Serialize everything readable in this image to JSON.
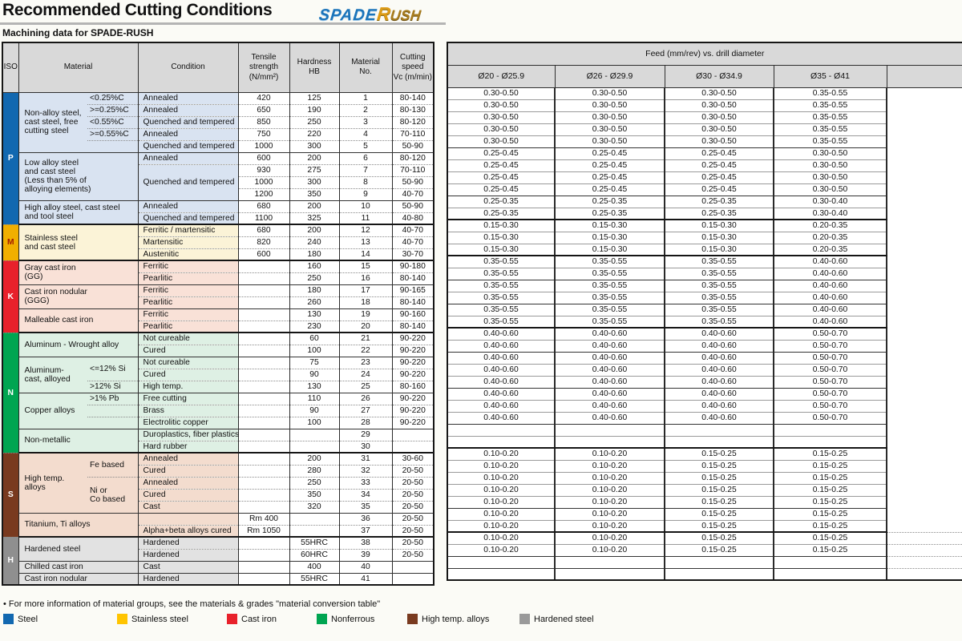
{
  "header": {
    "title": "Recommended Cutting Conditions",
    "logo_spade": "SPADE",
    "logo_rush_initial": "R",
    "logo_rush_rest": "USH",
    "subtitle": "Machining data for SPADE-RUSH"
  },
  "left_table": {
    "iso": "ISO",
    "material": "Material",
    "condition": "Condition",
    "tensile": "Tensile\nstrength\n(N/mm²)",
    "hardness": "Hardness\nHB",
    "material_no": "Material\nNo.",
    "cutting_speed": "Cutting\nspeed\nVc (m/min)"
  },
  "feed_table": {
    "title": "Feed (mm/rev) vs. drill diameter",
    "columns": [
      "Ø20 - Ø25.9",
      "Ø26 - Ø29.9",
      "Ø30 - Ø34.9",
      "Ø35 - Ø41"
    ]
  },
  "sections": [
    {
      "iso": "P",
      "color": "#1268b0",
      "tint": "#d9e3f1",
      "letter": "#ffffff",
      "groups": [
        {
          "material": "Non-alloy steel,\ncast steel, free\ncutting steel",
          "split": true,
          "rows": [
            {
              "sub": "<0.25%C",
              "cond": "Annealed",
              "ts": "420",
              "hb": "125",
              "no": "1",
              "vc": "80-140",
              "feeds": [
                "0.30-0.50",
                "0.30-0.50",
                "0.30-0.50",
                "0.35-0.55"
              ]
            },
            {
              "sub": ">=0.25%C",
              "cond": "Annealed",
              "ts": "650",
              "hb": "190",
              "no": "2",
              "vc": "80-130",
              "feeds": [
                "0.30-0.50",
                "0.30-0.50",
                "0.30-0.50",
                "0.35-0.55"
              ]
            },
            {
              "sub": "<0.55%C",
              "cond": "Quenched and tempered",
              "ts": "850",
              "hb": "250",
              "no": "3",
              "vc": "80-120",
              "feeds": [
                "0.30-0.50",
                "0.30-0.50",
                "0.30-0.50",
                "0.35-0.55"
              ]
            },
            {
              "sub": ">=0.55%C",
              "cond": "Annealed",
              "ts": "750",
              "hb": "220",
              "no": "4",
              "vc": "70-110",
              "feeds": [
                "0.30-0.50",
                "0.30-0.50",
                "0.30-0.50",
                "0.35-0.55"
              ]
            },
            {
              "sub": "",
              "cond": "Quenched and tempered",
              "ts": "1000",
              "hb": "300",
              "no": "5",
              "vc": "50-90",
              "feeds": [
                "0.30-0.50",
                "0.30-0.50",
                "0.30-0.50",
                "0.35-0.55"
              ]
            }
          ]
        },
        {
          "material": "Low alloy steel\nand cast steel\n(Less than 5% of\nalloying elements)",
          "split": false,
          "rows": [
            {
              "cond": "Annealed",
              "ts": "600",
              "hb": "200",
              "no": "6",
              "vc": "80-120",
              "feeds": [
                "0.25-0.45",
                "0.25-0.45",
                "0.25-0.45",
                "0.30-0.50"
              ]
            },
            {
              "cond": "Quenched and tempered",
              "cspan": 3,
              "ts": "930",
              "hb": "275",
              "no": "7",
              "vc": "70-110",
              "feeds": [
                "0.25-0.45",
                "0.25-0.45",
                "0.25-0.45",
                "0.30-0.50"
              ]
            },
            {
              "ts": "1000",
              "hb": "300",
              "no": "8",
              "vc": "50-90",
              "feeds": [
                "0.25-0.45",
                "0.25-0.45",
                "0.25-0.45",
                "0.30-0.50"
              ]
            },
            {
              "ts": "1200",
              "hb": "350",
              "no": "9",
              "vc": "40-70",
              "feeds": [
                "0.25-0.45",
                "0.25-0.45",
                "0.25-0.45",
                "0.30-0.50"
              ]
            }
          ]
        },
        {
          "material": "High alloy steel, cast steel\nand tool steel",
          "split": false,
          "rows": [
            {
              "cond": "Annealed",
              "ts": "680",
              "hb": "200",
              "no": "10",
              "vc": "50-90",
              "feeds": [
                "0.25-0.35",
                "0.25-0.35",
                "0.25-0.35",
                "0.30-0.40"
              ]
            },
            {
              "cond": "Quenched and tempered",
              "ts": "1100",
              "hb": "325",
              "no": "11",
              "vc": "40-80",
              "feeds": [
                "0.25-0.35",
                "0.25-0.35",
                "0.25-0.35",
                "0.30-0.40"
              ]
            }
          ]
        }
      ]
    },
    {
      "iso": "M",
      "color": "#f1af00",
      "tint": "#fbf3d7",
      "letter": "#a31d00",
      "groups": [
        {
          "material": "Stainless steel\nand cast steel",
          "split": false,
          "rows": [
            {
              "cond": "Ferritic / martensitic",
              "ts": "680",
              "hb": "200",
              "no": "12",
              "vc": "40-70",
              "feeds": [
                "0.15-0.30",
                "0.15-0.30",
                "0.15-0.30",
                "0.20-0.35"
              ]
            },
            {
              "cond": "Martensitic",
              "ts": "820",
              "hb": "240",
              "no": "13",
              "vc": "40-70",
              "feeds": [
                "0.15-0.30",
                "0.15-0.30",
                "0.15-0.30",
                "0.20-0.35"
              ]
            },
            {
              "cond": "Austenitic",
              "ts": "600",
              "hb": "180",
              "no": "14",
              "vc": "30-70",
              "feeds": [
                "0.15-0.30",
                "0.15-0.30",
                "0.15-0.30",
                "0.20-0.35"
              ]
            }
          ]
        }
      ]
    },
    {
      "iso": "K",
      "color": "#e8212b",
      "tint": "#f9e1d7",
      "letter": "#ffffff",
      "groups": [
        {
          "material": "Gray cast iron\n(GG)",
          "split": false,
          "rows": [
            {
              "cond": "Ferritic",
              "ts": "",
              "hb": "160",
              "no": "15",
              "vc": "90-180",
              "feeds": [
                "0.35-0.55",
                "0.35-0.55",
                "0.35-0.55",
                "0.40-0.60"
              ]
            },
            {
              "cond": "Pearlitic",
              "ts": "",
              "hb": "250",
              "no": "16",
              "vc": "80-140",
              "feeds": [
                "0.35-0.55",
                "0.35-0.55",
                "0.35-0.55",
                "0.40-0.60"
              ]
            }
          ]
        },
        {
          "material": "Cast iron nodular\n(GGG)",
          "split": false,
          "rows": [
            {
              "cond": "Ferritic",
              "ts": "",
              "hb": "180",
              "no": "17",
              "vc": "90-165",
              "feeds": [
                "0.35-0.55",
                "0.35-0.55",
                "0.35-0.55",
                "0.40-0.60"
              ]
            },
            {
              "cond": "Pearlitic",
              "ts": "",
              "hb": "260",
              "no": "18",
              "vc": "80-140",
              "feeds": [
                "0.35-0.55",
                "0.35-0.55",
                "0.35-0.55",
                "0.40-0.60"
              ]
            }
          ]
        },
        {
          "material": "Malleable cast iron",
          "split": false,
          "rows": [
            {
              "cond": "Ferritic",
              "ts": "",
              "hb": "130",
              "no": "19",
              "vc": "90-160",
              "feeds": [
                "0.35-0.55",
                "0.35-0.55",
                "0.35-0.55",
                "0.40-0.60"
              ]
            },
            {
              "cond": "Pearlitic",
              "ts": "",
              "hb": "230",
              "no": "20",
              "vc": "80-140",
              "feeds": [
                "0.35-0.55",
                "0.35-0.55",
                "0.35-0.55",
                "0.40-0.60"
              ]
            }
          ]
        }
      ]
    },
    {
      "iso": "N",
      "color": "#00a551",
      "tint": "#def0e4",
      "letter": "#ffffff",
      "groups": [
        {
          "material": "Aluminum - Wrought alloy",
          "split": false,
          "rows": [
            {
              "cond": "Not cureable",
              "ts": "",
              "hb": "60",
              "no": "21",
              "vc": "90-220",
              "feeds": [
                "0.40-0.60",
                "0.40-0.60",
                "0.40-0.60",
                "0.50-0.70"
              ]
            },
            {
              "cond": "Cured",
              "ts": "",
              "hb": "100",
              "no": "22",
              "vc": "90-220",
              "feeds": [
                "0.40-0.60",
                "0.40-0.60",
                "0.40-0.60",
                "0.50-0.70"
              ]
            }
          ]
        },
        {
          "material": "Aluminum-\ncast, alloyed",
          "split": true,
          "rows": [
            {
              "sub": "<=12% Si",
              "sspan": 2,
              "cond": "Not cureable",
              "ts": "",
              "hb": "75",
              "no": "23",
              "vc": "90-220",
              "feeds": [
                "0.40-0.60",
                "0.40-0.60",
                "0.40-0.60",
                "0.50-0.70"
              ]
            },
            {
              "cond": "Cured",
              "ts": "",
              "hb": "90",
              "no": "24",
              "vc": "90-220",
              "feeds": [
                "0.40-0.60",
                "0.40-0.60",
                "0.40-0.60",
                "0.50-0.70"
              ]
            },
            {
              "sub": ">12% Si",
              "cond": "High temp.",
              "ts": "",
              "hb": "130",
              "no": "25",
              "vc": "80-160",
              "feeds": [
                "0.40-0.60",
                "0.40-0.60",
                "0.40-0.60",
                "0.50-0.70"
              ]
            }
          ]
        },
        {
          "material": "Copper alloys",
          "split": true,
          "rows": [
            {
              "sub": ">1% Pb",
              "cond": "Free cutting",
              "ts": "",
              "hb": "110",
              "no": "26",
              "vc": "90-220",
              "feeds": [
                "0.40-0.60",
                "0.40-0.60",
                "0.40-0.60",
                "0.50-0.70"
              ]
            },
            {
              "sub": "",
              "cond": "Brass",
              "ts": "",
              "hb": "90",
              "no": "27",
              "vc": "90-220",
              "feeds": [
                "0.40-0.60",
                "0.40-0.60",
                "0.40-0.60",
                "0.50-0.70"
              ]
            },
            {
              "sub": "",
              "cond": "Electrolitic copper",
              "ts": "",
              "hb": "100",
              "no": "28",
              "vc": "90-220",
              "feeds": [
                "0.40-0.60",
                "0.40-0.60",
                "0.40-0.60",
                "0.50-0.70"
              ]
            }
          ]
        },
        {
          "material": "Non-metallic",
          "split": false,
          "rows": [
            {
              "cond": "Duroplastics, fiber plastics",
              "ts": "",
              "hb": "",
              "no": "29",
              "vc": "",
              "feeds": [
                "",
                "",
                "",
                ""
              ]
            },
            {
              "cond": "Hard rubber",
              "ts": "",
              "hb": "",
              "no": "30",
              "vc": "",
              "feeds": [
                "",
                "",
                "",
                ""
              ]
            }
          ]
        }
      ]
    },
    {
      "iso": "S",
      "color": "#793a1f",
      "tint": "#f3dcce",
      "letter": "#ffffff",
      "groups": [
        {
          "material": "High temp.\nalloys",
          "split": true,
          "rows": [
            {
              "sub": "Fe based",
              "sspan": 2,
              "cond": "Annealed",
              "ts": "",
              "hb": "200",
              "no": "31",
              "vc": "30-60",
              "feeds": [
                "0.10-0.20",
                "0.10-0.20",
                "0.15-0.25",
                "0.15-0.25"
              ]
            },
            {
              "cond": "Cured",
              "ts": "",
              "hb": "280",
              "no": "32",
              "vc": "20-50",
              "feeds": [
                "0.10-0.20",
                "0.10-0.20",
                "0.15-0.25",
                "0.15-0.25"
              ]
            },
            {
              "sub": "Ni or\nCo based",
              "sspan": 3,
              "cond": "Annealed",
              "ts": "",
              "hb": "250",
              "no": "33",
              "vc": "20-50",
              "feeds": [
                "0.10-0.20",
                "0.10-0.20",
                "0.15-0.25",
                "0.15-0.25"
              ]
            },
            {
              "cond": "Cured",
              "ts": "",
              "hb": "350",
              "no": "34",
              "vc": "20-50",
              "feeds": [
                "0.10-0.20",
                "0.10-0.20",
                "0.15-0.25",
                "0.15-0.25"
              ]
            },
            {
              "cond": "Cast",
              "ts": "",
              "hb": "320",
              "no": "35",
              "vc": "20-50",
              "feeds": [
                "0.10-0.20",
                "0.10-0.20",
                "0.15-0.25",
                "0.15-0.25"
              ]
            }
          ]
        },
        {
          "material": "Titanium, Ti alloys",
          "split": false,
          "rows": [
            {
              "cond": "",
              "ts": "Rm 400",
              "hb": "",
              "no": "36",
              "vc": "20-50",
              "feeds": [
                "0.10-0.20",
                "0.10-0.20",
                "0.15-0.25",
                "0.15-0.25"
              ]
            },
            {
              "cond": "Alpha+beta alloys cured",
              "ts": "Rm 1050",
              "hb": "",
              "no": "37",
              "vc": "20-50",
              "feeds": [
                "0.10-0.20",
                "0.10-0.20",
                "0.15-0.25",
                "0.15-0.25"
              ]
            }
          ]
        }
      ]
    },
    {
      "iso": "H",
      "color": "#8f8f8f",
      "tint": "#e2e2e2",
      "letter": "#ffffff",
      "checker": true,
      "groups": [
        {
          "material": "Hardened steel",
          "split": false,
          "rows": [
            {
              "cond": "Hardened",
              "ts": "",
              "hb": "55HRC",
              "no": "38",
              "vc": "20-50",
              "feeds": [
                "0.10-0.20",
                "0.10-0.20",
                "0.15-0.25",
                "0.15-0.25"
              ]
            },
            {
              "cond": "Hardened",
              "ts": "",
              "hb": "60HRC",
              "no": "39",
              "vc": "20-50",
              "feeds": [
                "0.10-0.20",
                "0.10-0.20",
                "0.15-0.25",
                "0.15-0.25"
              ]
            }
          ]
        },
        {
          "material": "Chilled cast iron",
          "split": false,
          "rows": [
            {
              "cond": "Cast",
              "ts": "",
              "hb": "400",
              "no": "40",
              "vc": "",
              "feeds": [
                "",
                "",
                "",
                ""
              ]
            }
          ]
        },
        {
          "material": "Cast iron nodular",
          "split": false,
          "rows": [
            {
              "cond": "Hardened",
              "ts": "",
              "hb": "55HRC",
              "no": "41",
              "vc": "",
              "feeds": [
                "",
                "",
                "",
                ""
              ]
            }
          ]
        }
      ]
    }
  ],
  "footer": {
    "note": "• For more information of material groups, see the materials & grades \"material conversion table\"",
    "legend": [
      {
        "label": "Steel",
        "color": "#1268b0"
      },
      {
        "label": "Stainless steel",
        "color": "#ffc400"
      },
      {
        "label": "Cast iron",
        "color": "#e8212b"
      },
      {
        "label": "Nonferrous",
        "color": "#00a551"
      },
      {
        "label": "High temp. alloys",
        "color": "#793a1f"
      },
      {
        "label": "Hardened steel",
        "color": "#9a9a9a",
        "checker": true
      }
    ]
  }
}
